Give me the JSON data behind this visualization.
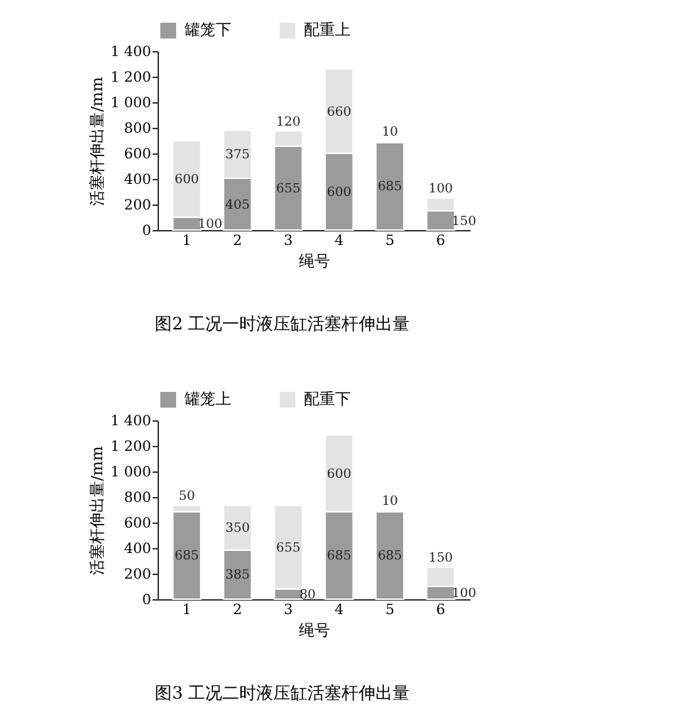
{
  "chart_data": [
    {
      "type": "bar",
      "stacked": true,
      "categories": [
        "1",
        "2",
        "3",
        "4",
        "5",
        "6"
      ],
      "series": [
        {
          "name": "罐笼下",
          "color": "#9b9b9b",
          "values": [
            100,
            405,
            655,
            600,
            685,
            150
          ]
        },
        {
          "name": "配重上",
          "color": "#e3e3e3",
          "values": [
            600,
            375,
            120,
            660,
            10,
            100
          ]
        }
      ],
      "xlabel": "绳号",
      "ylabel": "活塞杆伸出量/mm",
      "ylim": [
        0,
        1400
      ],
      "yticks": [
        0,
        200,
        400,
        600,
        800,
        {
          "value": 1000,
          "label": "1 000"
        },
        {
          "value": 1200,
          "label": "1 200"
        },
        {
          "value": 1400,
          "label": "1 400"
        }
      ],
      "data_labels": true,
      "legend": "top",
      "annotations": [
        "图2 工况一时液压缸活塞杆伸出量"
      ]
    },
    {
      "type": "bar",
      "stacked": true,
      "categories": [
        "1",
        "2",
        "3",
        "4",
        "5",
        "6"
      ],
      "series": [
        {
          "name": "罐笼上",
          "color": "#9b9b9b",
          "values": [
            685,
            385,
            80,
            685,
            685,
            100
          ]
        },
        {
          "name": "配重下",
          "color": "#e3e3e3",
          "values": [
            50,
            350,
            655,
            600,
            10,
            150
          ]
        }
      ],
      "xlabel": "绳号",
      "ylabel": "活塞杆伸出量/mm",
      "ylim": [
        0,
        1400
      ],
      "yticks": [
        0,
        200,
        400,
        600,
        800,
        {
          "value": 1000,
          "label": "1 000"
        },
        {
          "value": 1200,
          "label": "1 200"
        },
        {
          "value": 1400,
          "label": "1 400"
        }
      ],
      "data_labels": true,
      "legend": "top",
      "annotations": [
        "图3 工况二时液压缸活塞杆伸出量"
      ]
    }
  ]
}
